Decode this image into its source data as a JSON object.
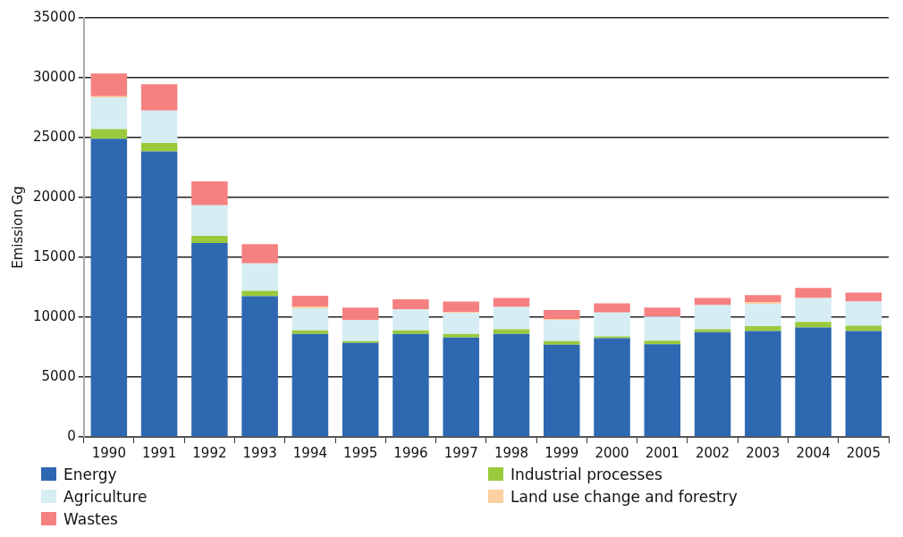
{
  "chart_data": {
    "type": "bar",
    "stacked": true,
    "ylabel": "Emission Gg",
    "categories": [
      "1990",
      "1991",
      "1992",
      "1993",
      "1994",
      "1995",
      "1996",
      "1997",
      "1998",
      "1999",
      "2000",
      "2001",
      "2002",
      "2003",
      "2004",
      "2005"
    ],
    "series": [
      {
        "name": "Energy",
        "color": "#2e68b1",
        "values": [
          24900,
          23850,
          16200,
          11750,
          8600,
          7850,
          8600,
          8300,
          8600,
          7700,
          8250,
          7750,
          8750,
          8850,
          9150,
          8850
        ]
      },
      {
        "name": "Industrial processes",
        "color": "#9aca3c",
        "values": [
          800,
          700,
          600,
          450,
          300,
          150,
          300,
          300,
          400,
          300,
          150,
          300,
          250,
          400,
          450,
          450
        ]
      },
      {
        "name": "Agriculture",
        "color": "#d5edf3",
        "values": [
          2650,
          2700,
          2550,
          2300,
          1850,
          1750,
          1750,
          1750,
          1850,
          1750,
          2000,
          2000,
          2000,
          1850,
          2000,
          2000
        ]
      },
      {
        "name": "Land use change and forestry",
        "color": "#fdd0a2",
        "values": [
          100,
          0,
          0,
          0,
          150,
          0,
          0,
          100,
          0,
          100,
          0,
          0,
          0,
          150,
          0,
          0
        ]
      },
      {
        "name": "Wastes",
        "color": "#f58080",
        "values": [
          1900,
          2200,
          2000,
          1600,
          900,
          1050,
          850,
          850,
          750,
          750,
          750,
          750,
          600,
          600,
          850,
          750
        ]
      }
    ],
    "ylim": [
      0,
      35000
    ],
    "yticks": [
      0,
      5000,
      10000,
      15000,
      20000,
      25000,
      30000,
      35000
    ],
    "grid": "y",
    "legend": "bottom"
  }
}
